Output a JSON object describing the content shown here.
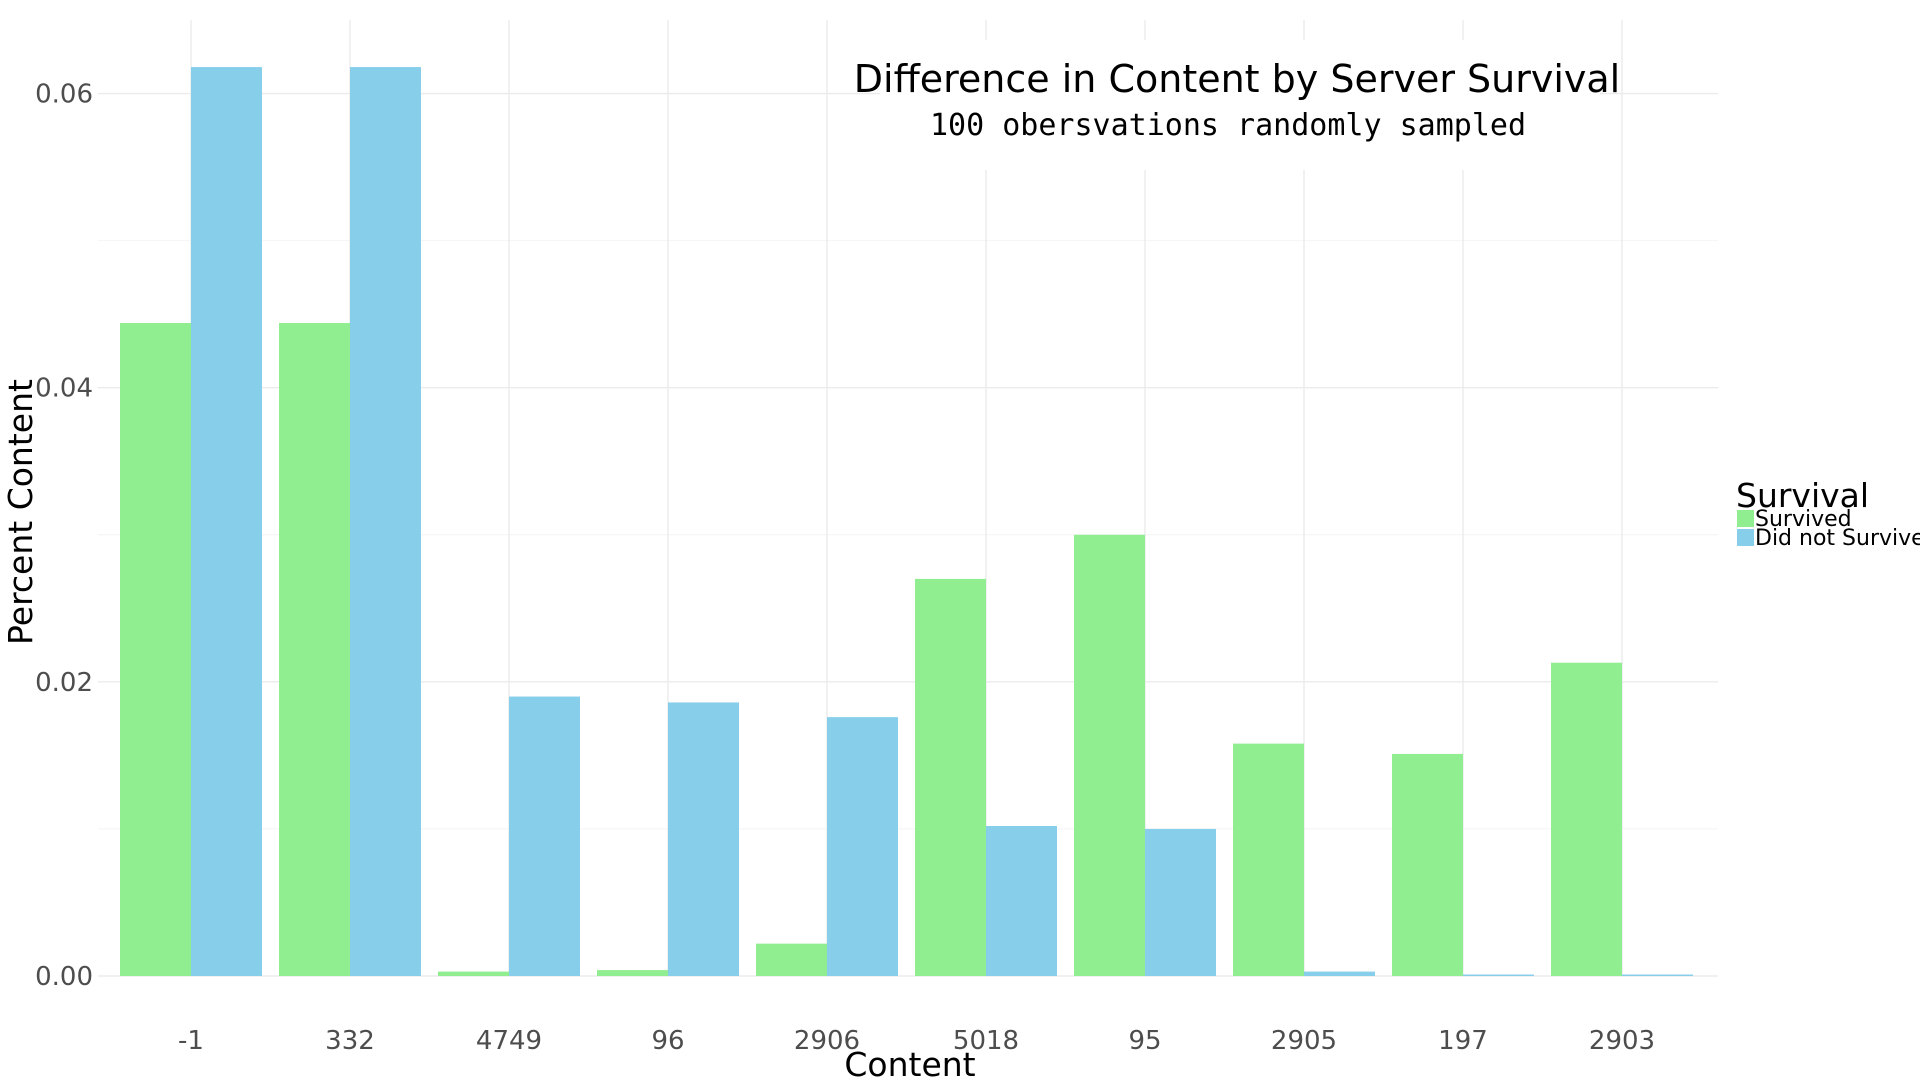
{
  "chart_data": {
    "type": "bar",
    "title": "Difference in Content by Server Survival",
    "subtitle": "100 obersvations randomly sampled",
    "xlabel": "Content",
    "ylabel": "Percent Content",
    "categories": [
      "-1",
      "332",
      "4749",
      "96",
      "2906",
      "5018",
      "95",
      "2905",
      "197",
      "2903"
    ],
    "series": [
      {
        "name": "Survived",
        "color": "#90EE90",
        "values": [
          0.0444,
          0.0444,
          0.0003,
          0.0004,
          0.0022,
          0.027,
          0.03,
          0.0158,
          0.0151,
          0.0213
        ]
      },
      {
        "name": "Did not Survive",
        "color": "#87CEEB",
        "values": [
          0.0618,
          0.0618,
          0.019,
          0.0186,
          0.0176,
          0.0102,
          0.01,
          0.0003,
          0.0001,
          0.0001
        ]
      }
    ],
    "ylim": [
      0,
      0.065
    ],
    "yticks": [
      0,
      0.02,
      0.04,
      0.06
    ],
    "ytick_labels": [
      "0.00",
      "0.02",
      "0.04",
      "0.06"
    ],
    "grid": true,
    "legend": {
      "title": "Survival",
      "placement": "right"
    }
  }
}
